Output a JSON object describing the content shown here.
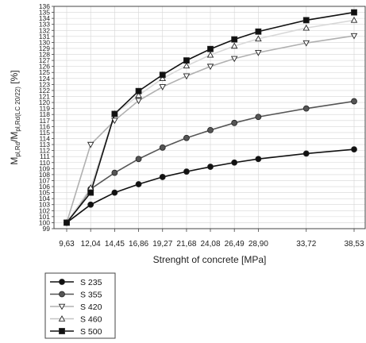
{
  "chart_data": {
    "type": "line",
    "xlabel": "Strenght of concrete [MPa]",
    "ylabel_main": "M",
    "ylabel_sub1": "pl,Rd",
    "ylabel_mid": "/M",
    "ylabel_sub2": "pl,Rd(LC 20/22)",
    "ylabel_unit": " [%]",
    "x": [
      9.63,
      12.04,
      14.45,
      16.86,
      19.27,
      21.68,
      24.08,
      26.49,
      28.9,
      33.72,
      38.53
    ],
    "x_labels": [
      "9,63",
      "12,04",
      "14,45",
      "16,86",
      "19,27",
      "21,68",
      "24,08",
      "26,49",
      "28,90",
      "33,72",
      "38,53"
    ],
    "ylim": [
      99,
      136
    ],
    "y_tick_labels": [
      "99",
      "100",
      "101",
      "102",
      "103",
      "104",
      "105",
      "106",
      "107",
      "108",
      "109",
      "110",
      "111",
      "112",
      "113",
      "114",
      "115",
      "116",
      "117",
      "118",
      "119",
      "120",
      "121",
      "122",
      "123",
      "124",
      "125",
      "126",
      "127",
      "128",
      "129",
      "130",
      "131",
      "132",
      "133",
      "134",
      "135",
      "136"
    ],
    "grid": true,
    "legend_position": "bottom-left",
    "series": [
      {
        "name": "S 235",
        "marker": "circle",
        "marker_fill": "#111111",
        "line_color": "#111111",
        "values": [
          100.0,
          103.0,
          105.0,
          106.4,
          107.6,
          108.5,
          109.3,
          110.0,
          110.6,
          111.5,
          112.2
        ]
      },
      {
        "name": "S 355",
        "marker": "circle",
        "marker_fill": "#555555",
        "line_color": "#555555",
        "values": [
          100.0,
          105.6,
          108.3,
          110.6,
          112.5,
          114.1,
          115.4,
          116.6,
          117.6,
          119.0,
          120.2
        ]
      },
      {
        "name": "S 420",
        "marker": "triangle-down",
        "marker_fill": "#ffffff",
        "line_color": "#b0b0b0",
        "values": [
          100.0,
          113.0,
          117.0,
          120.3,
          122.6,
          124.4,
          126.0,
          127.3,
          128.3,
          129.9,
          131.1
        ]
      },
      {
        "name": "S 460",
        "marker": "triangle-up",
        "marker_fill": "#ffffff",
        "line_color": "#d8d8d8",
        "values": [
          100.0,
          105.8,
          118.1,
          121.2,
          124.0,
          126.1,
          127.9,
          129.4,
          130.6,
          132.4,
          133.7
        ]
      },
      {
        "name": "S 500",
        "marker": "square",
        "marker_fill": "#111111",
        "line_color": "#111111",
        "values": [
          100.0,
          105.0,
          118.1,
          121.9,
          124.6,
          127.0,
          128.9,
          130.5,
          131.8,
          133.7,
          135.0
        ]
      }
    ]
  }
}
